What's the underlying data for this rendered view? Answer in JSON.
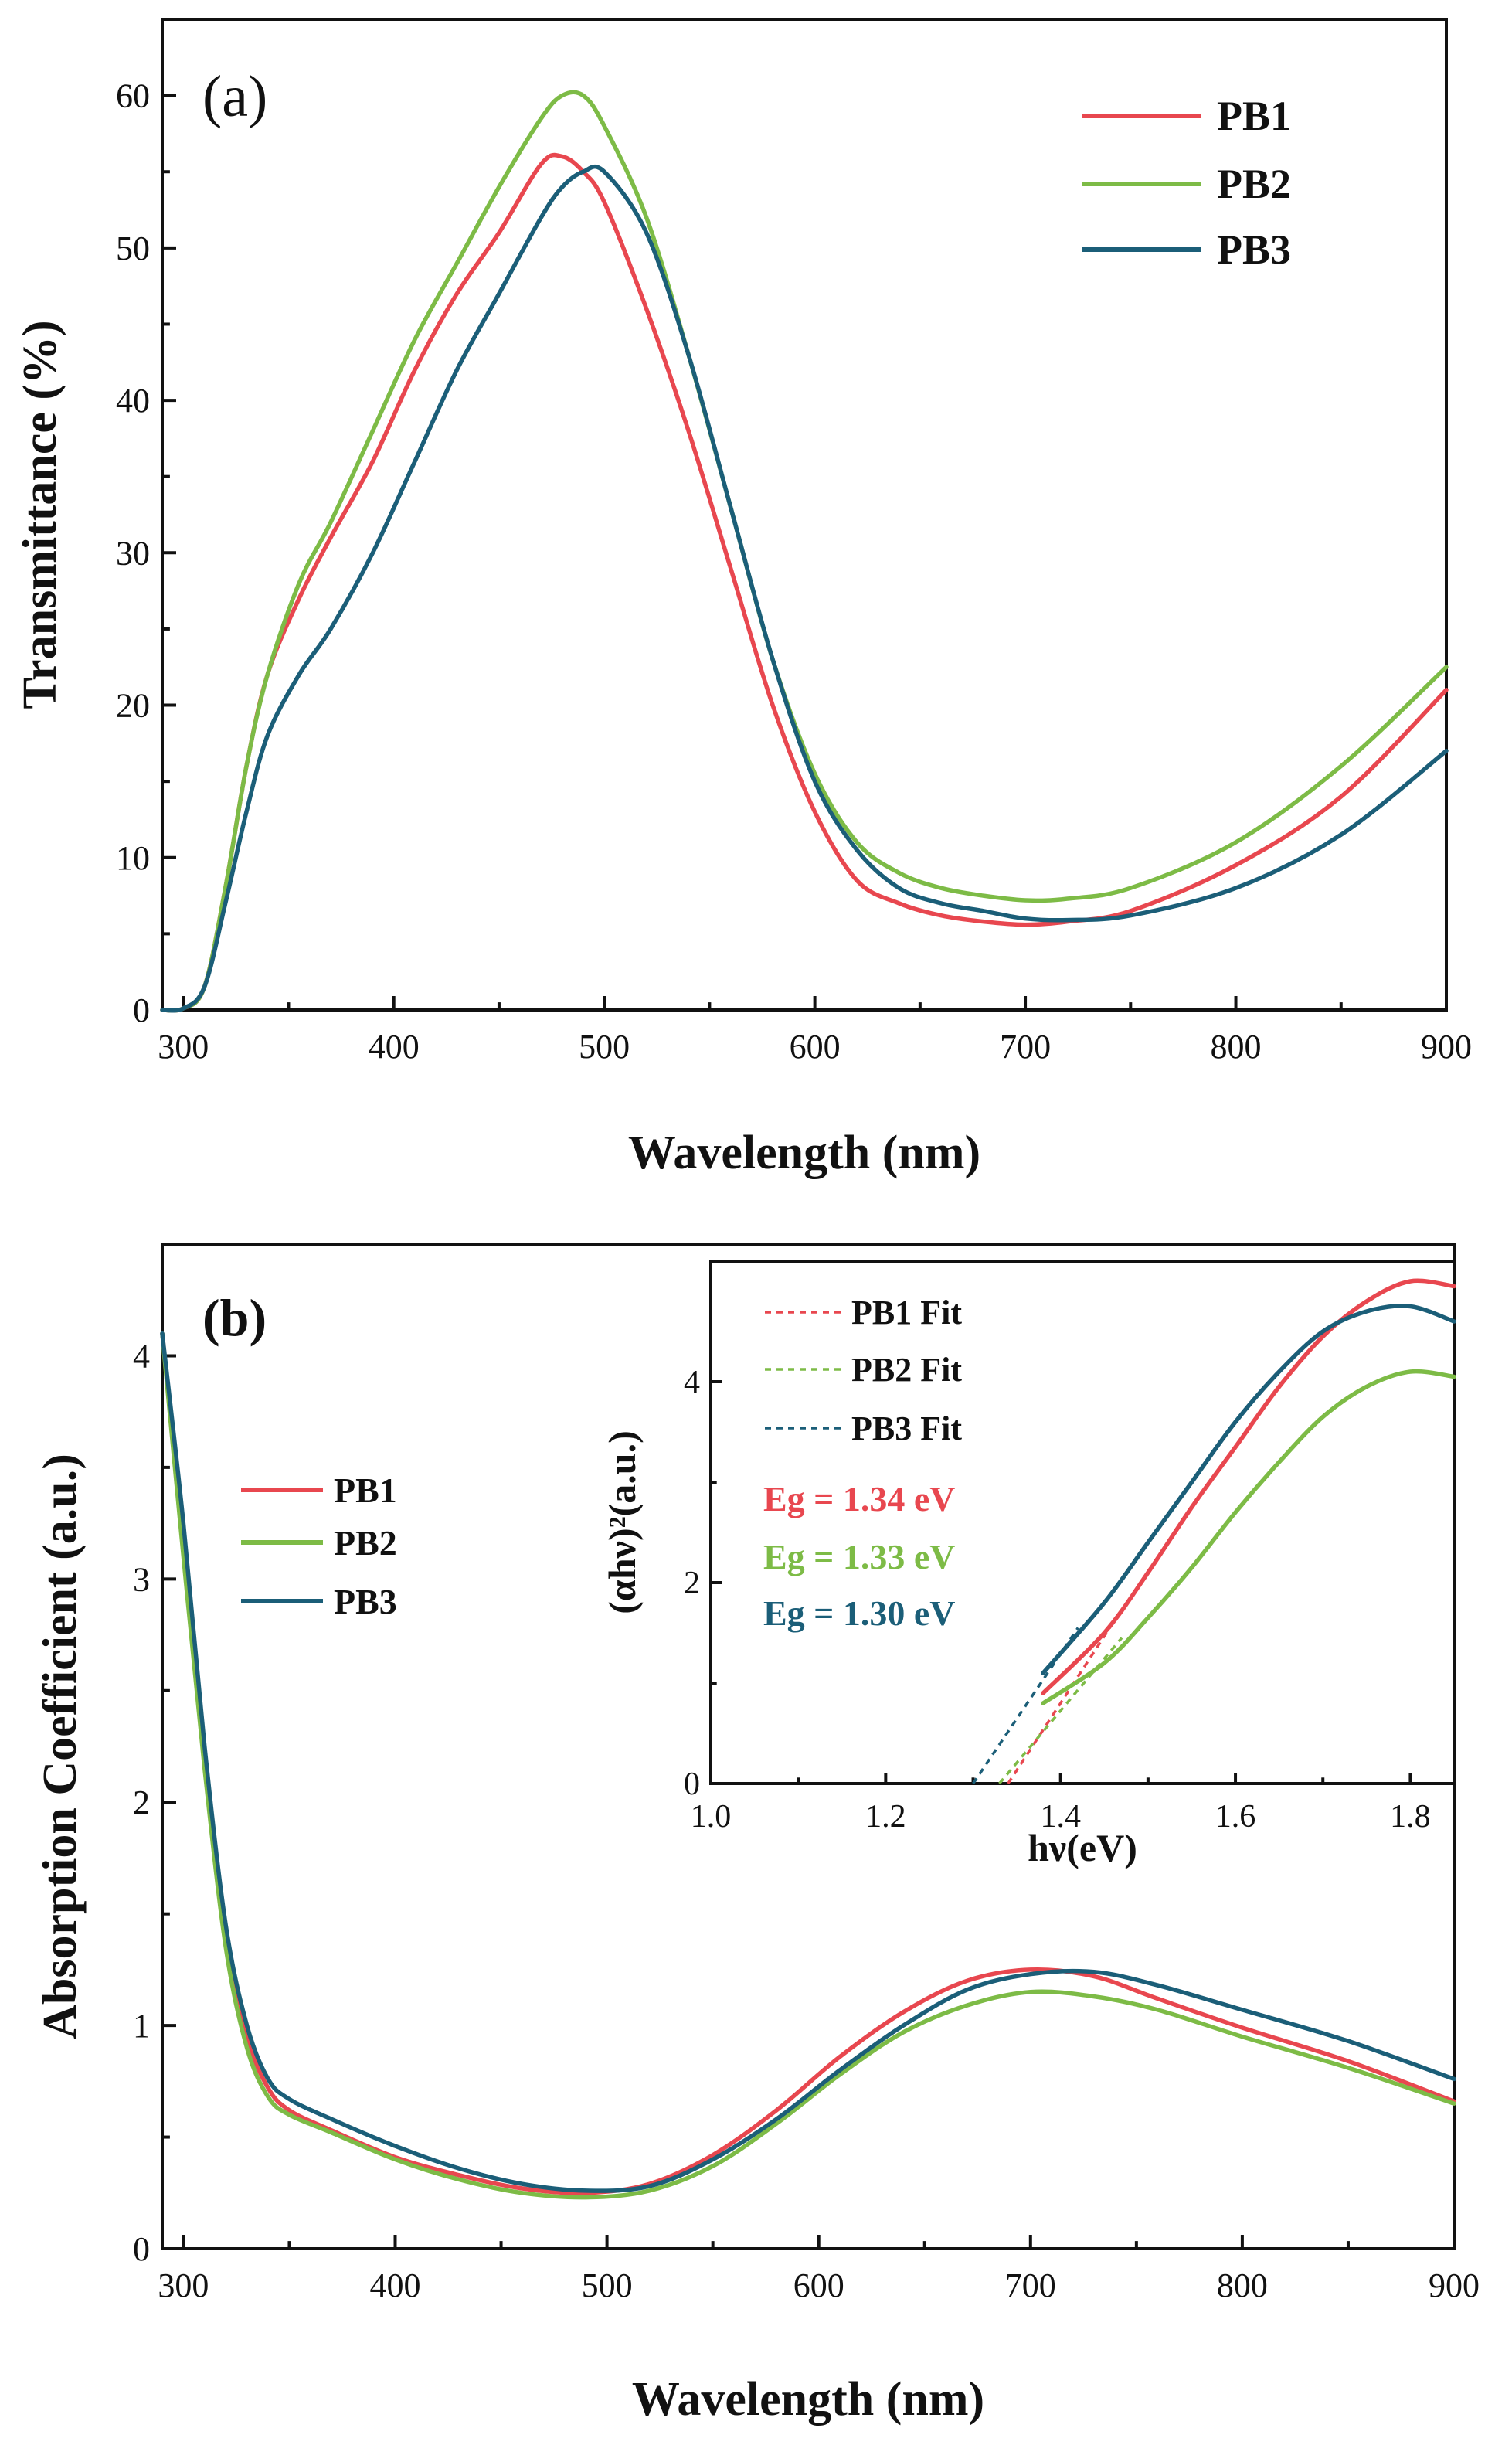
{
  "colors": {
    "PB1": "#e8474f",
    "PB2": "#7dbb46",
    "PB3": "#1b5e78",
    "axis": "#111111"
  },
  "chart_data": [
    {
      "panel": "(a)",
      "type": "line",
      "xlabel": "Wavelength (nm)",
      "ylabel": "Transmittance (%)",
      "xlim": [
        290,
        900
      ],
      "ylim": [
        0,
        65
      ],
      "xticks": [
        300,
        400,
        500,
        600,
        700,
        800,
        900
      ],
      "yticks": [
        0,
        10,
        20,
        30,
        40,
        50,
        60
      ],
      "legend_position": "top-right",
      "series": [
        {
          "name": "PB1",
          "x": [
            290,
            300,
            310,
            320,
            330,
            340,
            355,
            370,
            390,
            410,
            430,
            450,
            470,
            480,
            490,
            500,
            520,
            540,
            560,
            580,
            600,
            620,
            640,
            660,
            680,
            700,
            720,
            750,
            800,
            850,
            900
          ],
          "y": [
            0,
            0.1,
            1.5,
            8,
            16,
            22,
            27,
            31,
            36,
            42,
            47,
            51,
            55.5,
            56,
            55,
            53,
            46,
            38,
            29,
            20,
            13,
            8.5,
            7,
            6.2,
            5.8,
            5.6,
            5.8,
            6.5,
            9.5,
            14,
            21
          ]
        },
        {
          "name": "PB2",
          "x": [
            290,
            300,
            310,
            320,
            330,
            340,
            355,
            370,
            390,
            410,
            430,
            450,
            470,
            480,
            490,
            500,
            520,
            540,
            560,
            580,
            600,
            620,
            640,
            660,
            680,
            700,
            720,
            750,
            800,
            850,
            900
          ],
          "y": [
            0,
            0.1,
            1.5,
            8,
            16,
            22,
            28,
            32,
            38,
            44,
            49,
            54,
            58.5,
            60,
            60,
            58,
            52,
            43,
            33,
            23,
            15.5,
            11,
            9,
            8,
            7.5,
            7.2,
            7.3,
            8,
            11,
            16,
            22.5
          ]
        },
        {
          "name": "PB3",
          "x": [
            290,
            300,
            310,
            320,
            330,
            340,
            355,
            370,
            390,
            410,
            430,
            450,
            470,
            480,
            490,
            500,
            520,
            540,
            560,
            580,
            600,
            620,
            640,
            660,
            680,
            700,
            720,
            750,
            800,
            850,
            900
          ],
          "y": [
            0,
            0.1,
            1.5,
            7,
            13,
            18,
            22,
            25,
            30,
            36,
            42,
            47,
            52,
            54,
            55,
            55,
            51,
            43,
            33,
            23,
            15,
            10.5,
            8,
            7,
            6.5,
            6,
            5.9,
            6.2,
            8,
            11.5,
            17
          ]
        }
      ]
    },
    {
      "panel": "(b)",
      "type": "line",
      "xlabel": "Wavelength (nm)",
      "ylabel": "Absorption Coefficient (a.u.)",
      "xlim": [
        290,
        900
      ],
      "ylim": [
        0,
        4.5
      ],
      "xticks": [
        300,
        400,
        500,
        600,
        700,
        800,
        900
      ],
      "yticks": [
        0,
        1,
        2,
        3,
        4
      ],
      "legend_position": "middle-left",
      "series": [
        {
          "name": "PB1",
          "x": [
            290,
            300,
            310,
            320,
            330,
            340,
            350,
            370,
            400,
            430,
            460,
            490,
            520,
            550,
            580,
            610,
            640,
            670,
            700,
            730,
            760,
            800,
            850,
            900
          ],
          "y": [
            4.1,
            3.2,
            2.2,
            1.4,
            0.95,
            0.72,
            0.62,
            0.53,
            0.41,
            0.33,
            0.27,
            0.25,
            0.29,
            0.42,
            0.62,
            0.86,
            1.06,
            1.2,
            1.25,
            1.22,
            1.12,
            0.99,
            0.84,
            0.66
          ]
        },
        {
          "name": "PB2",
          "x": [
            290,
            300,
            310,
            320,
            330,
            340,
            350,
            370,
            400,
            430,
            460,
            490,
            520,
            550,
            580,
            610,
            640,
            670,
            700,
            730,
            760,
            800,
            850,
            900
          ],
          "y": [
            4.1,
            3.1,
            2.15,
            1.35,
            0.9,
            0.68,
            0.6,
            0.52,
            0.4,
            0.31,
            0.25,
            0.23,
            0.26,
            0.37,
            0.56,
            0.78,
            0.97,
            1.09,
            1.15,
            1.13,
            1.07,
            0.95,
            0.81,
            0.65
          ]
        },
        {
          "name": "PB3",
          "x": [
            290,
            300,
            310,
            320,
            330,
            340,
            350,
            370,
            400,
            430,
            460,
            490,
            520,
            550,
            580,
            610,
            640,
            670,
            700,
            730,
            760,
            800,
            850,
            900
          ],
          "y": [
            4.1,
            3.25,
            2.25,
            1.45,
            1.0,
            0.76,
            0.67,
            0.58,
            0.46,
            0.36,
            0.29,
            0.26,
            0.28,
            0.4,
            0.58,
            0.8,
            1.0,
            1.16,
            1.23,
            1.24,
            1.18,
            1.07,
            0.93,
            0.76
          ]
        }
      ],
      "inset": {
        "type": "line",
        "xlabel": "hν(eV)",
        "ylabel": "(αhν)²(a.u.)",
        "xlim": [
          1.0,
          1.85
        ],
        "ylim": [
          0,
          5.2
        ],
        "xticks": [
          "1.0",
          "1.2",
          "1.4",
          "1.6",
          "1.8"
        ],
        "yticks": [
          "0",
          "2",
          "4"
        ],
        "series": [
          {
            "name": "PB1",
            "x": [
              1.38,
              1.45,
              1.5,
              1.55,
              1.6,
              1.65,
              1.7,
              1.75,
              1.8,
              1.85
            ],
            "y": [
              0.9,
              1.5,
              2.1,
              2.75,
              3.35,
              3.95,
              4.45,
              4.8,
              5.0,
              4.95
            ]
          },
          {
            "name": "PB2",
            "x": [
              1.38,
              1.45,
              1.5,
              1.55,
              1.6,
              1.65,
              1.7,
              1.75,
              1.8,
              1.85
            ],
            "y": [
              0.8,
              1.2,
              1.65,
              2.15,
              2.7,
              3.2,
              3.65,
              3.95,
              4.1,
              4.05
            ]
          },
          {
            "name": "PB3",
            "x": [
              1.38,
              1.45,
              1.5,
              1.55,
              1.6,
              1.65,
              1.7,
              1.75,
              1.8,
              1.85
            ],
            "y": [
              1.1,
              1.8,
              2.4,
              3.0,
              3.6,
              4.1,
              4.5,
              4.7,
              4.75,
              4.6
            ]
          }
        ],
        "fits": [
          {
            "name": "PB1 Fit",
            "color_key": "PB1",
            "x": [
              1.34,
              1.46
            ],
            "y": [
              0,
              1.6
            ]
          },
          {
            "name": "PB2 Fit",
            "color_key": "PB2",
            "x": [
              1.33,
              1.47
            ],
            "y": [
              0,
              1.45
            ]
          },
          {
            "name": "PB3 Fit",
            "color_key": "PB3",
            "x": [
              1.3,
              1.42
            ],
            "y": [
              0,
              1.55
            ]
          }
        ],
        "annotations": [
          {
            "text": "Eg = 1.34 eV",
            "color_key": "PB1"
          },
          {
            "text": "Eg = 1.33 eV",
            "color_key": "PB2"
          },
          {
            "text": "Eg = 1.30 eV",
            "color_key": "PB3"
          }
        ]
      }
    }
  ]
}
